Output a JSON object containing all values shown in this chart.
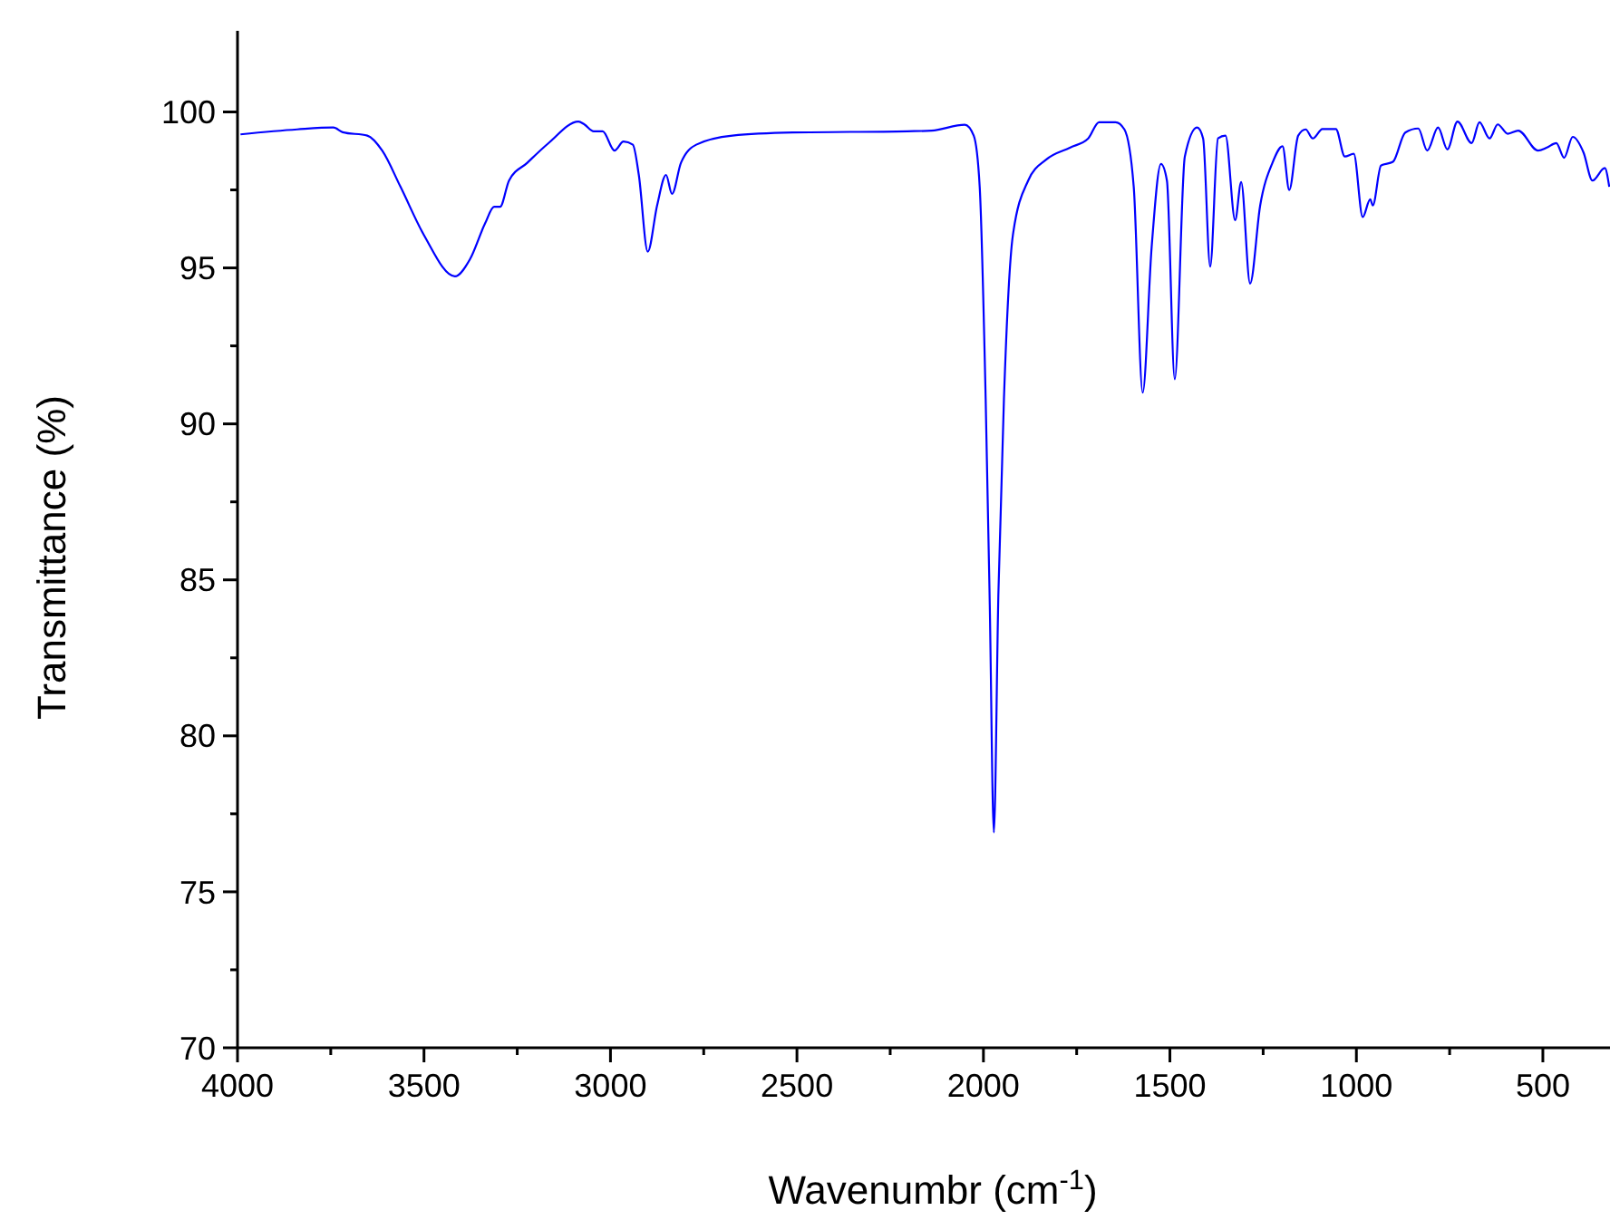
{
  "chart_data": {
    "type": "line",
    "xlabel": "Wavenumbr (cm$^{-1}$)",
    "ylabel": "Transmittance (%)",
    "xlim": [
      4000,
      320
    ],
    "ylim": [
      70,
      102.6
    ],
    "xticks": [
      4000,
      {
        "value": 3750,
        "label": null
      },
      3500,
      {
        "value": 3250,
        "label": null
      },
      3000,
      {
        "value": 2750,
        "label": null
      },
      2500,
      {
        "value": 2250,
        "label": null
      },
      2000,
      {
        "value": 1750,
        "label": null
      },
      1500,
      {
        "value": 1250,
        "label": null
      },
      1000,
      {
        "value": 750,
        "label": null
      },
      500
    ],
    "yticks": [
      70,
      {
        "value": 72.5,
        "label": null
      },
      75,
      {
        "value": 77.5,
        "label": null
      },
      80,
      {
        "value": 82.5,
        "label": null
      },
      85,
      {
        "value": 87.5,
        "label": null
      },
      90,
      {
        "value": 92.5,
        "label": null
      },
      95,
      {
        "value": 97.5,
        "label": null
      },
      100
    ],
    "grid": false,
    "marker": "none",
    "line_style": "solid",
    "x": [
      3992,
      3840,
      3743,
      3718,
      3652,
      3612,
      3563,
      3500,
      3417,
      3377,
      3336,
      3312,
      3296,
      3272,
      3223,
      3167,
      3086,
      3070,
      3045,
      3021,
      2989,
      2965,
      2940,
      2924,
      2900,
      2875,
      2851,
      2835,
      2811,
      2770,
      2673,
      2511,
      2204,
      2139,
      2050,
      2026,
      2010,
      1994,
      1983,
      1972,
      1960,
      1945,
      1921,
      1880,
      1832,
      1767,
      1719,
      1690,
      1646,
      1622,
      1597,
      1573,
      1549,
      1524,
      1508,
      1487,
      1460,
      1427,
      1411,
      1392,
      1371,
      1351,
      1325,
      1309,
      1285,
      1258,
      1225,
      1198,
      1180,
      1156,
      1136,
      1117,
      1091,
      1055,
      1031,
      1007,
      983,
      963,
      956,
      934,
      902,
      869,
      834,
      810,
      781,
      756,
      729,
      691,
      670,
      643,
      621,
      594,
      566,
      513,
      489,
      464,
      443,
      420,
      391,
      367,
      334,
      322
    ],
    "series": [
      {
        "color": "#0000ff",
        "values": [
          99.28,
          99.44,
          99.5,
          99.35,
          99.24,
          98.76,
          97.6,
          96.05,
          94.73,
          95.27,
          96.43,
          96.96,
          96.96,
          97.8,
          98.37,
          98.99,
          99.69,
          99.6,
          99.38,
          99.38,
          98.76,
          99.05,
          98.95,
          97.98,
          95.52,
          97.0,
          97.98,
          97.37,
          98.37,
          98.95,
          99.24,
          99.34,
          99.38,
          99.4,
          99.59,
          99.24,
          97.6,
          90.8,
          84.2,
          76.9,
          84.5,
          90.8,
          96.05,
          97.8,
          98.47,
          98.86,
          99.15,
          99.67,
          99.67,
          99.44,
          97.6,
          91.0,
          95.66,
          98.33,
          97.8,
          91.43,
          98.57,
          99.5,
          99.15,
          95.04,
          99.15,
          99.24,
          96.53,
          97.75,
          94.5,
          97.0,
          98.37,
          98.9,
          97.5,
          99.24,
          99.44,
          99.15,
          99.45,
          99.45,
          98.57,
          98.66,
          96.63,
          97.2,
          97.0,
          98.28,
          98.4,
          99.34,
          99.47,
          98.76,
          99.5,
          98.8,
          99.69,
          99.0,
          99.67,
          99.15,
          99.6,
          99.3,
          99.4,
          98.76,
          98.86,
          99.0,
          98.53,
          99.2,
          98.7,
          97.8,
          98.2,
          97.6
        ]
      }
    ]
  }
}
